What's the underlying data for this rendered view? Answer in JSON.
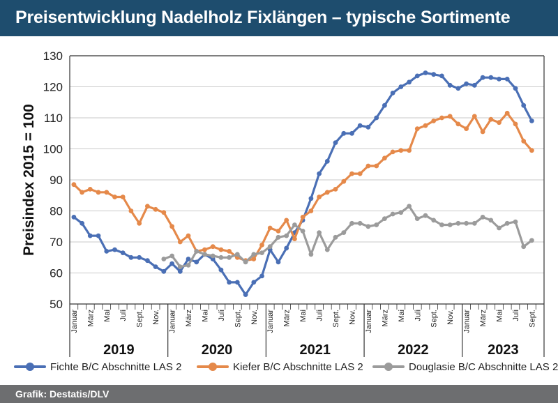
{
  "title": "Preisentwicklung Nadelholz Fixlängen – typische Sortimente",
  "footer": "Grafik: Destatis/DLV",
  "colors": {
    "header_bg": "#1e4d6e",
    "footer_bg": "#6d6e70",
    "fichte": "#4a6fb5",
    "kiefer": "#e5894a",
    "douglasie": "#9b9b9b",
    "grid": "#c9c9c9"
  },
  "chart_data": {
    "type": "line",
    "ylabel": "Preisindex 2015 = 100",
    "xlabel": "",
    "ylim": [
      50,
      130
    ],
    "yticks": [
      50,
      60,
      70,
      80,
      90,
      100,
      110,
      120,
      130
    ],
    "grid": true,
    "legend_position": "bottom",
    "month_tick_labels": [
      "Januar",
      "März",
      "Mai",
      "Juli",
      "Sept.",
      "Nov."
    ],
    "years": [
      "2019",
      "2020",
      "2021",
      "2022",
      "2023"
    ],
    "x_start": "2019-01",
    "x_end": "2023-10",
    "series": [
      {
        "name": "Fichte B/C Abschnitte LAS 2",
        "color": "#4a6fb5",
        "start": "2019-01",
        "values": [
          78,
          76,
          72,
          72,
          67,
          67.5,
          66.5,
          65,
          65,
          64,
          62,
          60.5,
          63,
          60.5,
          64.5,
          63.5,
          66,
          64.5,
          61,
          57,
          57,
          53,
          57,
          59,
          67.5,
          63.5,
          68,
          73,
          77,
          84,
          92,
          96,
          102,
          105,
          105,
          107.5,
          107,
          110,
          114,
          118,
          120,
          121.5,
          123.5,
          124.5,
          124,
          123.5,
          120.5,
          119.5,
          121,
          120.5,
          123,
          123,
          122.5,
          122.5,
          119.5,
          114,
          109
        ]
      },
      {
        "name": "Kiefer B/C Abschnitte LAS 2",
        "color": "#e5894a",
        "start": "2019-01",
        "values": [
          88.5,
          86,
          87,
          86,
          86,
          84.5,
          84.5,
          80,
          76,
          81.5,
          80.5,
          79.5,
          75,
          70,
          72,
          67,
          67.5,
          68.5,
          67.5,
          67,
          65,
          64,
          64.5,
          69,
          74.5,
          73.5,
          77,
          71,
          78,
          80,
          84.5,
          86,
          87,
          89.5,
          92,
          92,
          94.5,
          94.5,
          97,
          99,
          99.5,
          99.5,
          106.5,
          107.5,
          109,
          110,
          110.5,
          108,
          106.5,
          110.5,
          105.5,
          109.5,
          108.5,
          111.5,
          108,
          102.5,
          99.5
        ]
      },
      {
        "name": "Douglasie B/C Abschnitte LAS 2",
        "color": "#9b9b9b",
        "start": "2019-12",
        "values": [
          64.5,
          65.5,
          62,
          62.5,
          67,
          66,
          65.5,
          65,
          65,
          66,
          63.5,
          66,
          66.5,
          68.5,
          71.5,
          72,
          75.5,
          73.5,
          66,
          73,
          67.5,
          71.5,
          73,
          76,
          76,
          75,
          75.5,
          77.5,
          79,
          79.5,
          81.5,
          77.5,
          78.5,
          77,
          75.5,
          75.5,
          76,
          76,
          76,
          78,
          77,
          74.5,
          76,
          76.5,
          68.5,
          70.5
        ]
      }
    ]
  }
}
